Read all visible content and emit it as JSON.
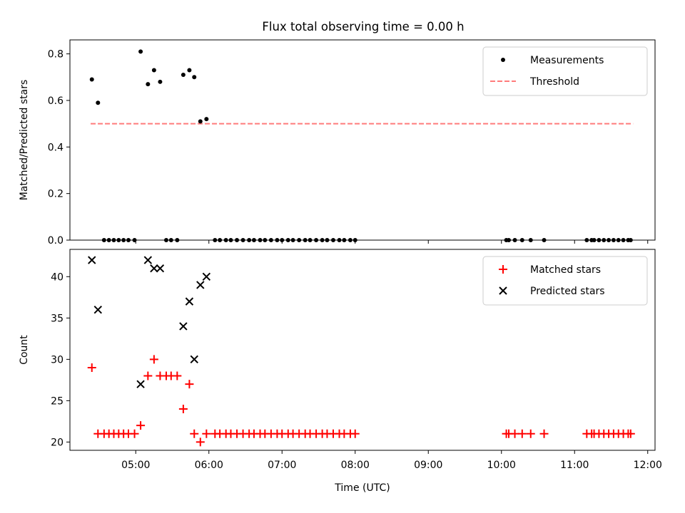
{
  "title": "Flux total observing time = 0.00 h",
  "colors": {
    "measurement": "#000000",
    "threshold": "#ff7b7b",
    "matched": "#ff0000",
    "predicted": "#000000",
    "axes": "#000000",
    "legend_border": "#cccccc"
  },
  "chart_data": [
    {
      "type": "scatter",
      "panel": "top",
      "xlabel": "",
      "ylabel": "Matched/Predicted stars",
      "xlim": [
        "04:06",
        "12:06"
      ],
      "ylim": [
        0,
        0.86
      ],
      "yticks": [
        0.0,
        0.2,
        0.4,
        0.6,
        0.8
      ],
      "ytick_labels": [
        "0.0",
        "0.2",
        "0.4",
        "0.6",
        "0.8"
      ],
      "grid": false,
      "legend": "top-right",
      "legend_labels": [
        "Measurements",
        "Threshold"
      ],
      "threshold": {
        "value": 0.5,
        "x_range": [
          "04:23",
          "11:48"
        ]
      },
      "series": [
        {
          "name": "Measurements",
          "x": [
            "04:24",
            "04:29",
            "04:34",
            "04:38",
            "04:42",
            "04:46",
            "04:50",
            "04:54",
            "04:59",
            "05:04",
            "05:10",
            "05:15",
            "05:20",
            "05:25",
            "05:29",
            "05:34",
            "05:39",
            "05:44",
            "05:48",
            "05:53",
            "05:58",
            "06:05",
            "06:09",
            "06:14",
            "06:18",
            "06:23",
            "06:28",
            "06:33",
            "06:37",
            "06:42",
            "06:46",
            "06:51",
            "06:56",
            "07:00",
            "07:05",
            "07:09",
            "07:14",
            "07:19",
            "07:23",
            "07:28",
            "07:33",
            "07:37",
            "07:42",
            "07:47",
            "07:51",
            "07:56",
            "08:00",
            "10:04",
            "10:06",
            "10:11",
            "10:17",
            "10:24",
            "10:35",
            "11:10",
            "11:14",
            "11:16",
            "11:20",
            "11:24",
            "11:28",
            "11:32",
            "11:36",
            "11:40",
            "11:44",
            "11:46"
          ],
          "values": [
            0.69,
            0.59,
            0.0,
            0.0,
            0.0,
            0.0,
            0.0,
            0.0,
            0.0,
            0.81,
            0.67,
            0.73,
            0.68,
            0.0,
            0.0,
            0.0,
            0.71,
            0.73,
            0.7,
            0.51,
            0.52,
            0.0,
            0.0,
            0.0,
            0.0,
            0.0,
            0.0,
            0.0,
            0.0,
            0.0,
            0.0,
            0.0,
            0.0,
            0.0,
            0.0,
            0.0,
            0.0,
            0.0,
            0.0,
            0.0,
            0.0,
            0.0,
            0.0,
            0.0,
            0.0,
            0.0,
            0.0,
            0.0,
            0.0,
            0.0,
            0.0,
            0.0,
            0.0,
            0.0,
            0.0,
            0.0,
            0.0,
            0.0,
            0.0,
            0.0,
            0.0,
            0.0,
            0.0,
            0.0
          ]
        }
      ]
    },
    {
      "type": "scatter",
      "panel": "bottom",
      "xlabel": "Time (UTC)",
      "ylabel": "Count",
      "xlim": [
        "04:06",
        "12:06"
      ],
      "ylim": [
        19.0,
        43.3
      ],
      "yticks": [
        20,
        25,
        30,
        35,
        40
      ],
      "ytick_labels": [
        "20",
        "25",
        "30",
        "35",
        "40"
      ],
      "xticks": [
        "05:00",
        "06:00",
        "07:00",
        "08:00",
        "09:00",
        "10:00",
        "11:00",
        "12:00"
      ],
      "xtick_labels": [
        "05:00",
        "06:00",
        "07:00",
        "08:00",
        "09:00",
        "10:00",
        "11:00",
        "12:00"
      ],
      "grid": false,
      "legend": "top-right",
      "legend_labels": [
        "Matched stars",
        "Predicted stars"
      ],
      "series": [
        {
          "name": "Matched stars",
          "x": [
            "04:24",
            "04:29",
            "04:34",
            "04:38",
            "04:42",
            "04:46",
            "04:50",
            "04:54",
            "04:59",
            "05:04",
            "05:10",
            "05:15",
            "05:20",
            "05:25",
            "05:29",
            "05:34",
            "05:39",
            "05:44",
            "05:48",
            "05:53",
            "05:58",
            "06:05",
            "06:09",
            "06:14",
            "06:18",
            "06:23",
            "06:28",
            "06:33",
            "06:37",
            "06:42",
            "06:46",
            "06:51",
            "06:56",
            "07:00",
            "07:05",
            "07:09",
            "07:14",
            "07:19",
            "07:23",
            "07:28",
            "07:33",
            "07:37",
            "07:42",
            "07:47",
            "07:51",
            "07:56",
            "08:00",
            "10:04",
            "10:06",
            "10:11",
            "10:17",
            "10:24",
            "10:35",
            "11:10",
            "11:14",
            "11:16",
            "11:20",
            "11:24",
            "11:28",
            "11:32",
            "11:36",
            "11:40",
            "11:44",
            "11:46"
          ],
          "values": [
            29,
            21,
            21,
            21,
            21,
            21,
            21,
            21,
            21,
            22,
            28,
            30,
            28,
            28,
            28,
            28,
            24,
            27,
            21,
            20,
            21,
            21,
            21,
            21,
            21,
            21,
            21,
            21,
            21,
            21,
            21,
            21,
            21,
            21,
            21,
            21,
            21,
            21,
            21,
            21,
            21,
            21,
            21,
            21,
            21,
            21,
            21,
            21,
            21,
            21,
            21,
            21,
            21,
            21,
            21,
            21,
            21,
            21,
            21,
            21,
            21,
            21,
            21,
            21
          ]
        },
        {
          "name": "Predicted stars",
          "x": [
            "04:24",
            "04:29",
            "05:04",
            "05:10",
            "05:15",
            "05:20",
            "05:39",
            "05:44",
            "05:48",
            "05:53",
            "05:58"
          ],
          "values": [
            42,
            36,
            27,
            42,
            41,
            41,
            34,
            37,
            30,
            39,
            40
          ]
        }
      ]
    }
  ]
}
